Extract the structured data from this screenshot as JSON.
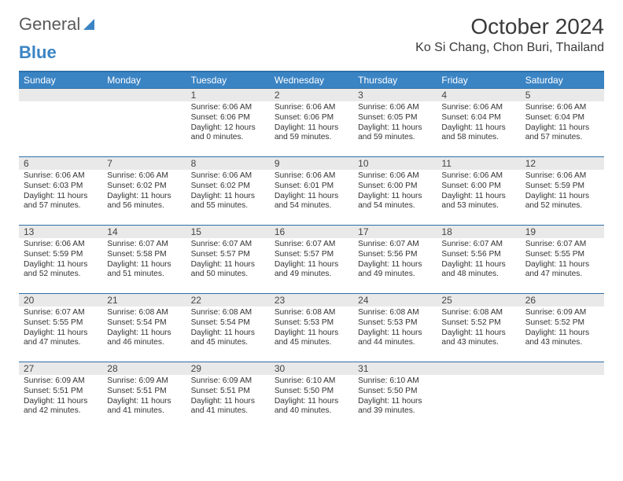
{
  "logo": {
    "word1": "General",
    "word2": "Blue"
  },
  "title": "October 2024",
  "location": "Ko Si Chang, Chon Buri, Thailand",
  "colors": {
    "header_bg": "#3b84c4",
    "header_border": "#2d6fa8",
    "daynum_bg": "#e9e9e9",
    "text": "#333333",
    "page_bg": "#ffffff"
  },
  "day_labels": [
    "Sunday",
    "Monday",
    "Tuesday",
    "Wednesday",
    "Thursday",
    "Friday",
    "Saturday"
  ],
  "weeks": [
    [
      {
        "day": "",
        "sunrise": "",
        "sunset": "",
        "daylight": ""
      },
      {
        "day": "",
        "sunrise": "",
        "sunset": "",
        "daylight": ""
      },
      {
        "day": "1",
        "sunrise": "Sunrise: 6:06 AM",
        "sunset": "Sunset: 6:06 PM",
        "daylight": "Daylight: 12 hours and 0 minutes."
      },
      {
        "day": "2",
        "sunrise": "Sunrise: 6:06 AM",
        "sunset": "Sunset: 6:06 PM",
        "daylight": "Daylight: 11 hours and 59 minutes."
      },
      {
        "day": "3",
        "sunrise": "Sunrise: 6:06 AM",
        "sunset": "Sunset: 6:05 PM",
        "daylight": "Daylight: 11 hours and 59 minutes."
      },
      {
        "day": "4",
        "sunrise": "Sunrise: 6:06 AM",
        "sunset": "Sunset: 6:04 PM",
        "daylight": "Daylight: 11 hours and 58 minutes."
      },
      {
        "day": "5",
        "sunrise": "Sunrise: 6:06 AM",
        "sunset": "Sunset: 6:04 PM",
        "daylight": "Daylight: 11 hours and 57 minutes."
      }
    ],
    [
      {
        "day": "6",
        "sunrise": "Sunrise: 6:06 AM",
        "sunset": "Sunset: 6:03 PM",
        "daylight": "Daylight: 11 hours and 57 minutes."
      },
      {
        "day": "7",
        "sunrise": "Sunrise: 6:06 AM",
        "sunset": "Sunset: 6:02 PM",
        "daylight": "Daylight: 11 hours and 56 minutes."
      },
      {
        "day": "8",
        "sunrise": "Sunrise: 6:06 AM",
        "sunset": "Sunset: 6:02 PM",
        "daylight": "Daylight: 11 hours and 55 minutes."
      },
      {
        "day": "9",
        "sunrise": "Sunrise: 6:06 AM",
        "sunset": "Sunset: 6:01 PM",
        "daylight": "Daylight: 11 hours and 54 minutes."
      },
      {
        "day": "10",
        "sunrise": "Sunrise: 6:06 AM",
        "sunset": "Sunset: 6:00 PM",
        "daylight": "Daylight: 11 hours and 54 minutes."
      },
      {
        "day": "11",
        "sunrise": "Sunrise: 6:06 AM",
        "sunset": "Sunset: 6:00 PM",
        "daylight": "Daylight: 11 hours and 53 minutes."
      },
      {
        "day": "12",
        "sunrise": "Sunrise: 6:06 AM",
        "sunset": "Sunset: 5:59 PM",
        "daylight": "Daylight: 11 hours and 52 minutes."
      }
    ],
    [
      {
        "day": "13",
        "sunrise": "Sunrise: 6:06 AM",
        "sunset": "Sunset: 5:59 PM",
        "daylight": "Daylight: 11 hours and 52 minutes."
      },
      {
        "day": "14",
        "sunrise": "Sunrise: 6:07 AM",
        "sunset": "Sunset: 5:58 PM",
        "daylight": "Daylight: 11 hours and 51 minutes."
      },
      {
        "day": "15",
        "sunrise": "Sunrise: 6:07 AM",
        "sunset": "Sunset: 5:57 PM",
        "daylight": "Daylight: 11 hours and 50 minutes."
      },
      {
        "day": "16",
        "sunrise": "Sunrise: 6:07 AM",
        "sunset": "Sunset: 5:57 PM",
        "daylight": "Daylight: 11 hours and 49 minutes."
      },
      {
        "day": "17",
        "sunrise": "Sunrise: 6:07 AM",
        "sunset": "Sunset: 5:56 PM",
        "daylight": "Daylight: 11 hours and 49 minutes."
      },
      {
        "day": "18",
        "sunrise": "Sunrise: 6:07 AM",
        "sunset": "Sunset: 5:56 PM",
        "daylight": "Daylight: 11 hours and 48 minutes."
      },
      {
        "day": "19",
        "sunrise": "Sunrise: 6:07 AM",
        "sunset": "Sunset: 5:55 PM",
        "daylight": "Daylight: 11 hours and 47 minutes."
      }
    ],
    [
      {
        "day": "20",
        "sunrise": "Sunrise: 6:07 AM",
        "sunset": "Sunset: 5:55 PM",
        "daylight": "Daylight: 11 hours and 47 minutes."
      },
      {
        "day": "21",
        "sunrise": "Sunrise: 6:08 AM",
        "sunset": "Sunset: 5:54 PM",
        "daylight": "Daylight: 11 hours and 46 minutes."
      },
      {
        "day": "22",
        "sunrise": "Sunrise: 6:08 AM",
        "sunset": "Sunset: 5:54 PM",
        "daylight": "Daylight: 11 hours and 45 minutes."
      },
      {
        "day": "23",
        "sunrise": "Sunrise: 6:08 AM",
        "sunset": "Sunset: 5:53 PM",
        "daylight": "Daylight: 11 hours and 45 minutes."
      },
      {
        "day": "24",
        "sunrise": "Sunrise: 6:08 AM",
        "sunset": "Sunset: 5:53 PM",
        "daylight": "Daylight: 11 hours and 44 minutes."
      },
      {
        "day": "25",
        "sunrise": "Sunrise: 6:08 AM",
        "sunset": "Sunset: 5:52 PM",
        "daylight": "Daylight: 11 hours and 43 minutes."
      },
      {
        "day": "26",
        "sunrise": "Sunrise: 6:09 AM",
        "sunset": "Sunset: 5:52 PM",
        "daylight": "Daylight: 11 hours and 43 minutes."
      }
    ],
    [
      {
        "day": "27",
        "sunrise": "Sunrise: 6:09 AM",
        "sunset": "Sunset: 5:51 PM",
        "daylight": "Daylight: 11 hours and 42 minutes."
      },
      {
        "day": "28",
        "sunrise": "Sunrise: 6:09 AM",
        "sunset": "Sunset: 5:51 PM",
        "daylight": "Daylight: 11 hours and 41 minutes."
      },
      {
        "day": "29",
        "sunrise": "Sunrise: 6:09 AM",
        "sunset": "Sunset: 5:51 PM",
        "daylight": "Daylight: 11 hours and 41 minutes."
      },
      {
        "day": "30",
        "sunrise": "Sunrise: 6:10 AM",
        "sunset": "Sunset: 5:50 PM",
        "daylight": "Daylight: 11 hours and 40 minutes."
      },
      {
        "day": "31",
        "sunrise": "Sunrise: 6:10 AM",
        "sunset": "Sunset: 5:50 PM",
        "daylight": "Daylight: 11 hours and 39 minutes."
      },
      {
        "day": "",
        "sunrise": "",
        "sunset": "",
        "daylight": ""
      },
      {
        "day": "",
        "sunrise": "",
        "sunset": "",
        "daylight": ""
      }
    ]
  ]
}
